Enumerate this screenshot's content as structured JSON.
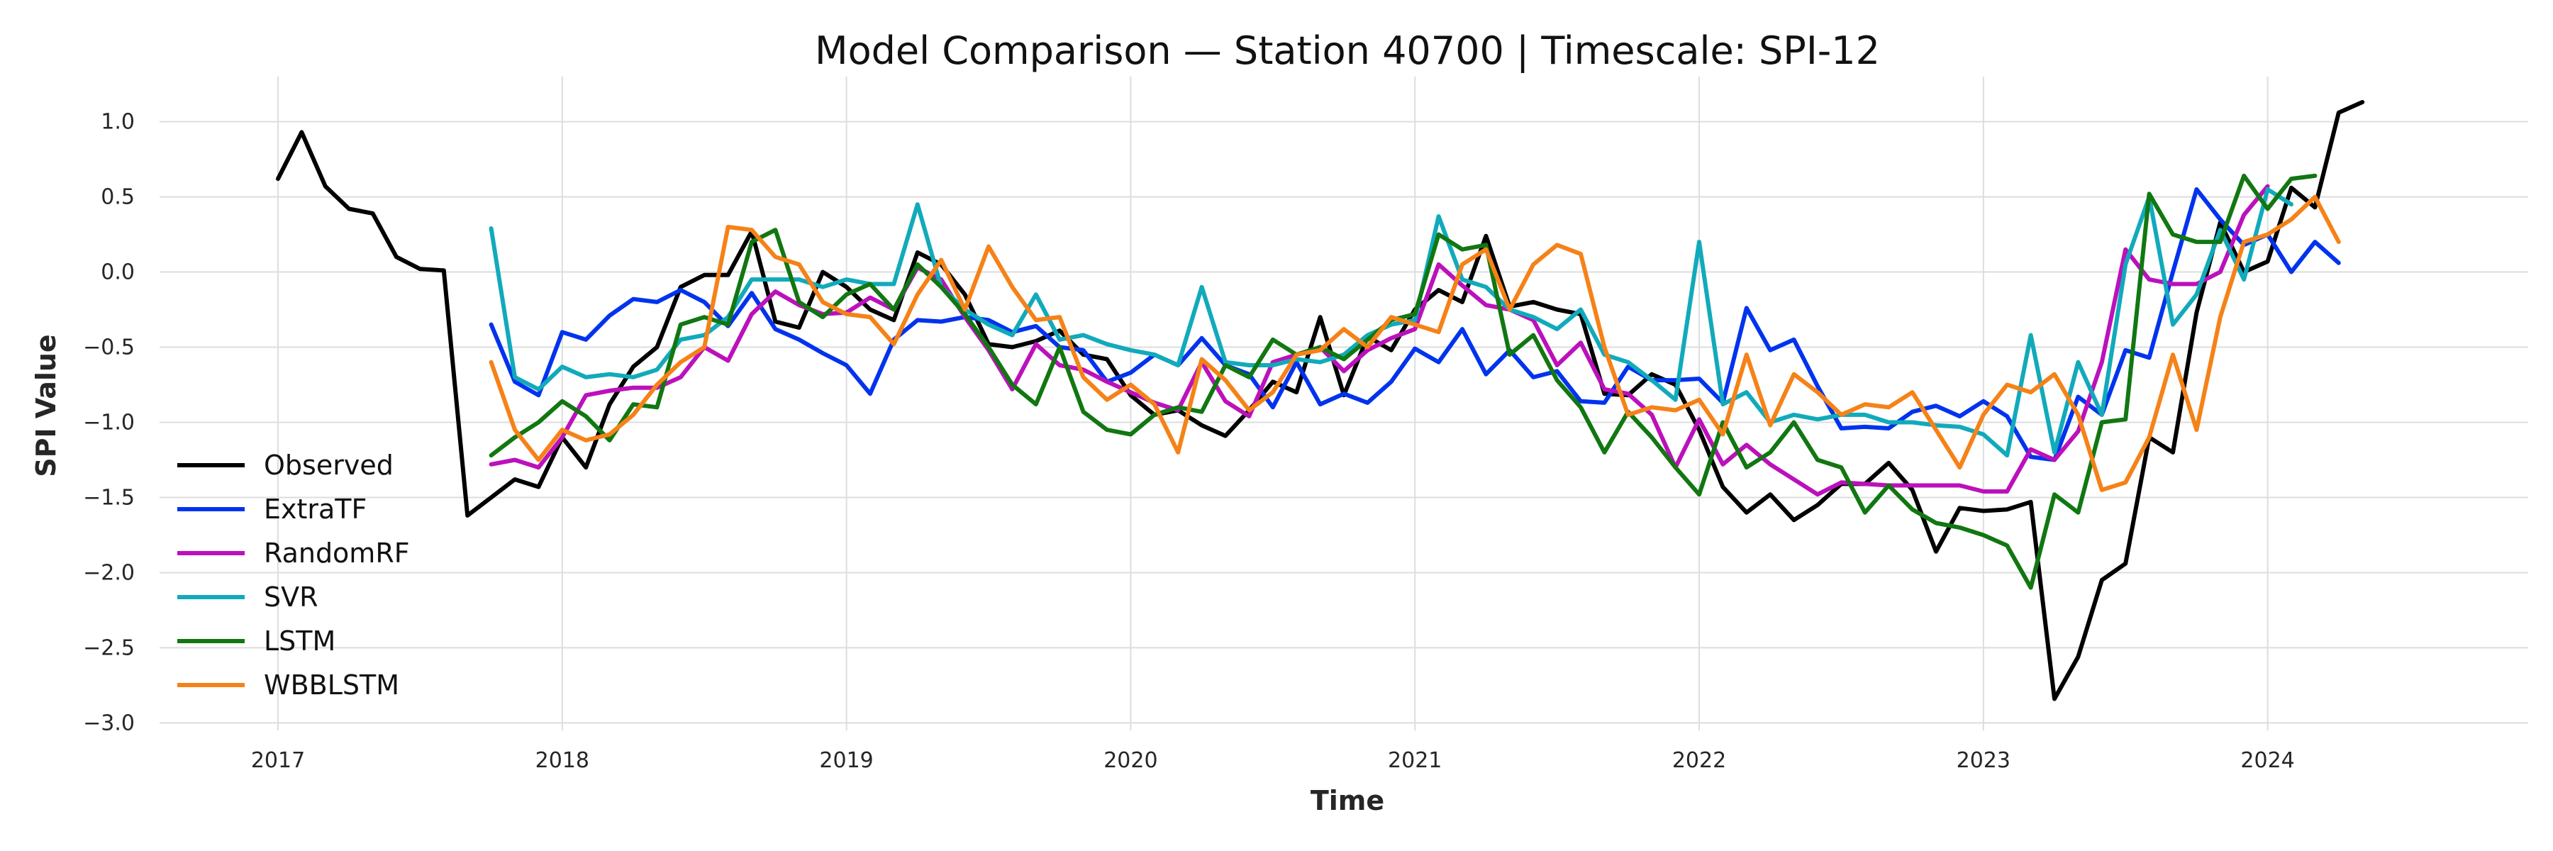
{
  "chart_data": {
    "type": "line",
    "title": "Model Comparison — Station 40700 | Timescale: SPI-12",
    "xlabel": "Time",
    "ylabel": "SPI Value",
    "x_start": "2017-01",
    "x_ticks": [
      "2017",
      "2018",
      "2019",
      "2020",
      "2021",
      "2022",
      "2023",
      "2024"
    ],
    "y_ticks": [
      "−3.0",
      "−2.5",
      "−2.0",
      "−1.5",
      "−1.0",
      "−0.5",
      "0.0",
      "0.5",
      "1.0"
    ],
    "xlim": [
      "2016-08",
      "2024-12"
    ],
    "ylim": [
      -3.05,
      1.3
    ],
    "grid": true,
    "legend_position": "lower-left",
    "series": [
      {
        "name": "Observed",
        "color": "#000000",
        "start": "2017-01",
        "values": [
          0.62,
          0.93,
          0.57,
          0.42,
          0.39,
          0.1,
          0.02,
          0.01,
          -1.62,
          -1.5,
          -1.38,
          -1.43,
          -1.1,
          -1.3,
          -0.88,
          -0.63,
          -0.5,
          -0.1,
          -0.02,
          -0.02,
          0.27,
          -0.33,
          -0.37,
          0.0,
          -0.1,
          -0.25,
          -0.32,
          0.13,
          0.05,
          -0.15,
          -0.48,
          -0.5,
          -0.46,
          -0.39,
          -0.55,
          -0.58,
          -0.82,
          -0.95,
          -0.92,
          -1.02,
          -1.09,
          -0.92,
          -0.73,
          -0.8,
          -0.3,
          -0.82,
          -0.43,
          -0.52,
          -0.25,
          -0.12,
          -0.2,
          0.24,
          -0.23,
          -0.2,
          -0.25,
          -0.28,
          -0.81,
          -0.82,
          -0.68,
          -0.75,
          -1.05,
          -1.43,
          -1.6,
          -1.48,
          -1.65,
          -1.55,
          -1.41,
          -1.41,
          -1.27,
          -1.45,
          -1.86,
          -1.57,
          -1.59,
          -1.58,
          -1.53,
          -2.84,
          -2.56,
          -2.05,
          -1.94,
          -1.1,
          -1.2,
          -0.27,
          0.33,
          0.0,
          0.07,
          0.56,
          0.43,
          1.06,
          1.13
        ]
      },
      {
        "name": "ExtraTF",
        "color": "#0033ee",
        "start": "2017-10",
        "values": [
          -0.35,
          -0.73,
          -0.82,
          -0.4,
          -0.45,
          -0.29,
          -0.18,
          -0.2,
          -0.12,
          -0.2,
          -0.36,
          -0.14,
          -0.38,
          -0.45,
          -0.54,
          -0.62,
          -0.81,
          -0.45,
          -0.32,
          -0.33,
          -0.3,
          -0.32,
          -0.4,
          -0.36,
          -0.5,
          -0.52,
          -0.73,
          -0.67,
          -0.55,
          -0.62,
          -0.44,
          -0.62,
          -0.68,
          -0.9,
          -0.6,
          -0.88,
          -0.81,
          -0.87,
          -0.73,
          -0.51,
          -0.6,
          -0.38,
          -0.68,
          -0.52,
          -0.7,
          -0.66,
          -0.86,
          -0.87,
          -0.63,
          -0.72,
          -0.72,
          -0.71,
          -0.87,
          -0.24,
          -0.52,
          -0.45,
          -0.76,
          -1.04,
          -1.03,
          -1.04,
          -0.93,
          -0.89,
          -0.96,
          -0.86,
          -0.96,
          -1.23,
          -1.25,
          -0.83,
          -0.95,
          -0.52,
          -0.57,
          0.0,
          0.55,
          0.35,
          0.18,
          0.25,
          0.0,
          0.2,
          0.06
        ]
      },
      {
        "name": "RandomRF",
        "color": "#bb11bb",
        "start": "2017-10",
        "values": [
          -1.28,
          -1.25,
          -1.3,
          -1.1,
          -0.82,
          -0.79,
          -0.77,
          -0.77,
          -0.7,
          -0.5,
          -0.59,
          -0.28,
          -0.13,
          -0.22,
          -0.28,
          -0.27,
          -0.17,
          -0.25,
          0.03,
          -0.05,
          -0.3,
          -0.52,
          -0.78,
          -0.48,
          -0.62,
          -0.65,
          -0.73,
          -0.8,
          -0.87,
          -0.92,
          -0.6,
          -0.86,
          -0.96,
          -0.6,
          -0.55,
          -0.5,
          -0.66,
          -0.52,
          -0.44,
          -0.38,
          0.05,
          -0.09,
          -0.22,
          -0.25,
          -0.32,
          -0.62,
          -0.47,
          -0.78,
          -0.81,
          -0.95,
          -1.3,
          -0.98,
          -1.28,
          -1.15,
          -1.28,
          -1.38,
          -1.48,
          -1.4,
          -1.41,
          -1.42,
          -1.42,
          -1.42,
          -1.42,
          -1.46,
          -1.46,
          -1.18,
          -1.25,
          -1.06,
          -0.6,
          0.15,
          -0.05,
          -0.08,
          -0.08,
          0.0,
          0.38,
          0.57
        ]
      },
      {
        "name": "SVR",
        "color": "#11aabb",
        "start": "2017-10",
        "values": [
          0.29,
          -0.7,
          -0.78,
          -0.63,
          -0.7,
          -0.68,
          -0.7,
          -0.65,
          -0.45,
          -0.42,
          -0.3,
          -0.05,
          -0.05,
          -0.05,
          -0.1,
          -0.05,
          -0.08,
          -0.08,
          0.45,
          -0.1,
          -0.25,
          -0.35,
          -0.42,
          -0.15,
          -0.45,
          -0.42,
          -0.48,
          -0.52,
          -0.55,
          -0.62,
          -0.1,
          -0.6,
          -0.62,
          -0.62,
          -0.58,
          -0.6,
          -0.55,
          -0.42,
          -0.35,
          -0.32,
          0.37,
          -0.05,
          -0.1,
          -0.25,
          -0.3,
          -0.38,
          -0.25,
          -0.55,
          -0.6,
          -0.72,
          -0.85,
          0.2,
          -0.88,
          -0.8,
          -1.0,
          -0.95,
          -0.98,
          -0.95,
          -0.95,
          -1.0,
          -1.0,
          -1.02,
          -1.03,
          -1.08,
          -1.22,
          -0.42,
          -1.2,
          -0.6,
          -0.95,
          0.05,
          0.5,
          -0.35,
          -0.15,
          0.28,
          -0.05,
          0.55,
          0.45
        ]
      },
      {
        "name": "LSTM",
        "color": "#117711",
        "start": "2017-10",
        "values": [
          -1.22,
          -1.1,
          -1.0,
          -0.86,
          -0.96,
          -1.12,
          -0.88,
          -0.9,
          -0.35,
          -0.3,
          -0.35,
          0.2,
          0.28,
          -0.2,
          -0.3,
          -0.15,
          -0.08,
          -0.25,
          0.05,
          -0.1,
          -0.28,
          -0.5,
          -0.75,
          -0.88,
          -0.5,
          -0.93,
          -1.05,
          -1.08,
          -0.95,
          -0.9,
          -0.93,
          -0.62,
          -0.7,
          -0.45,
          -0.55,
          -0.5,
          -0.58,
          -0.45,
          -0.32,
          -0.28,
          0.25,
          0.15,
          0.18,
          -0.55,
          -0.42,
          -0.72,
          -0.9,
          -1.2,
          -0.93,
          -1.1,
          -1.3,
          -1.48,
          -1.0,
          -1.3,
          -1.2,
          -1.0,
          -1.25,
          -1.3,
          -1.6,
          -1.42,
          -1.58,
          -1.67,
          -1.7,
          -1.75,
          -1.82,
          -2.1,
          -1.48,
          -1.6,
          -1.0,
          -0.98,
          0.52,
          0.25,
          0.2,
          0.2,
          0.64,
          0.42,
          0.62,
          0.64
        ]
      },
      {
        "name": "WBBLSTM",
        "color": "#f58218",
        "start": "2017-10",
        "values": [
          -0.6,
          -1.05,
          -1.25,
          -1.05,
          -1.12,
          -1.08,
          -0.95,
          -0.75,
          -0.6,
          -0.5,
          0.3,
          0.28,
          0.1,
          0.05,
          -0.2,
          -0.28,
          -0.3,
          -0.48,
          -0.15,
          0.08,
          -0.25,
          0.17,
          -0.1,
          -0.32,
          -0.3,
          -0.7,
          -0.85,
          -0.75,
          -0.88,
          -1.2,
          -0.58,
          -0.72,
          -0.92,
          -0.8,
          -0.55,
          -0.52,
          -0.38,
          -0.5,
          -0.3,
          -0.35,
          -0.4,
          0.05,
          0.15,
          -0.25,
          0.05,
          0.18,
          0.12,
          -0.5,
          -0.95,
          -0.9,
          -0.92,
          -0.85,
          -1.08,
          -0.55,
          -1.02,
          -0.68,
          -0.8,
          -0.95,
          -0.88,
          -0.9,
          -0.8,
          -1.05,
          -1.3,
          -0.95,
          -0.75,
          -0.8,
          -0.68,
          -0.95,
          -1.45,
          -1.4,
          -1.1,
          -0.55,
          -1.05,
          -0.3,
          0.2,
          0.25,
          0.35,
          0.5,
          0.2
        ]
      }
    ]
  }
}
